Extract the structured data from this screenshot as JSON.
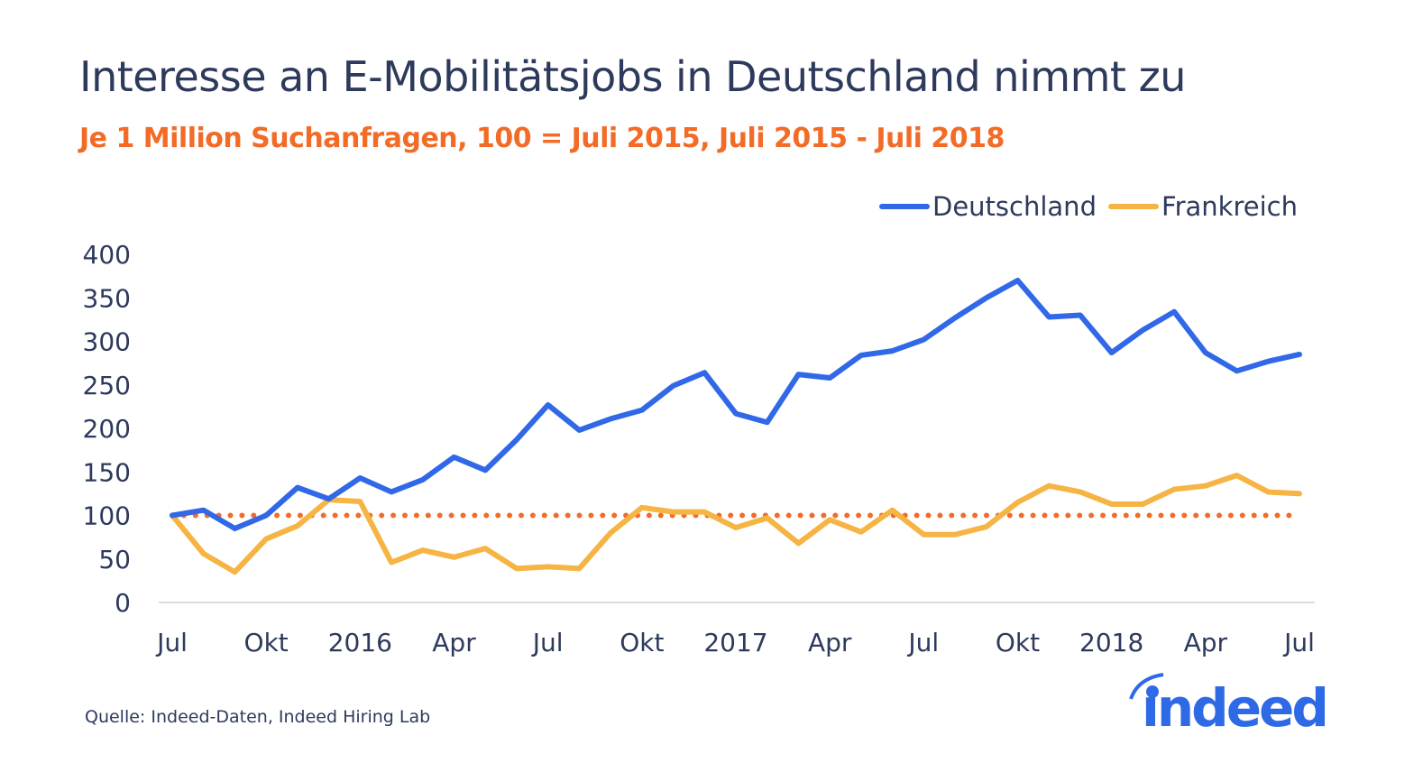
{
  "chart_data": {
    "type": "line",
    "title": "Interesse an E-Mobilitätsjobs in Deutschland nimmt zu",
    "subtitle": "Je 1 Million Suchanfragen, 100 = Juli 2015, Juli 2015 - Juli 2018",
    "source": "Quelle: Indeed-Daten, Indeed Hiring Lab",
    "x_tick_labels": [
      "Jul",
      "Okt",
      "2016",
      "Apr",
      "Jul",
      "Okt",
      "2017",
      "Apr",
      "Jul",
      "Okt",
      "2018",
      "Apr",
      "Jul"
    ],
    "y_ticks": [
      0,
      50,
      100,
      150,
      200,
      250,
      300,
      350,
      400
    ],
    "ylim": [
      0,
      400
    ],
    "x_range": [
      "2015-07",
      "2018-07"
    ],
    "legend_position": "top-right",
    "reference_line": {
      "value": 100,
      "style": "dotted",
      "color": "#f26b27"
    },
    "x": [
      "2015-07",
      "2015-08",
      "2015-09",
      "2015-10",
      "2015-11",
      "2015-12",
      "2016-01",
      "2016-02",
      "2016-03",
      "2016-04",
      "2016-05",
      "2016-06",
      "2016-07",
      "2016-08",
      "2016-09",
      "2016-10",
      "2016-11",
      "2016-12",
      "2017-01",
      "2017-02",
      "2017-03",
      "2017-04",
      "2017-05",
      "2017-06",
      "2017-07",
      "2017-08",
      "2017-09",
      "2017-10",
      "2017-11",
      "2017-12",
      "2018-01",
      "2018-02",
      "2018-03",
      "2018-04",
      "2018-05",
      "2018-06",
      "2018-07"
    ],
    "series": [
      {
        "name": "Deutschland",
        "color": "#3068e8",
        "values": [
          100,
          106,
          85,
          100,
          132,
          119,
          143,
          127,
          141,
          167,
          152,
          187,
          227,
          198,
          211,
          221,
          249,
          264,
          217,
          207,
          262,
          258,
          284,
          289,
          302,
          327,
          350,
          370,
          328,
          330,
          287,
          313,
          334,
          287,
          266,
          277,
          285
        ]
      },
      {
        "name": "Frankreich",
        "color": "#f5b443",
        "values": [
          100,
          56,
          35,
          73,
          88,
          118,
          116,
          46,
          60,
          52,
          62,
          39,
          41,
          39,
          80,
          109,
          104,
          104,
          86,
          97,
          68,
          95,
          81,
          106,
          78,
          78,
          87,
          115,
          134,
          127,
          113,
          113,
          130,
          134,
          146,
          127,
          125
        ]
      }
    ]
  },
  "logo": {
    "text": "indeed",
    "color": "#2e6ae6"
  }
}
